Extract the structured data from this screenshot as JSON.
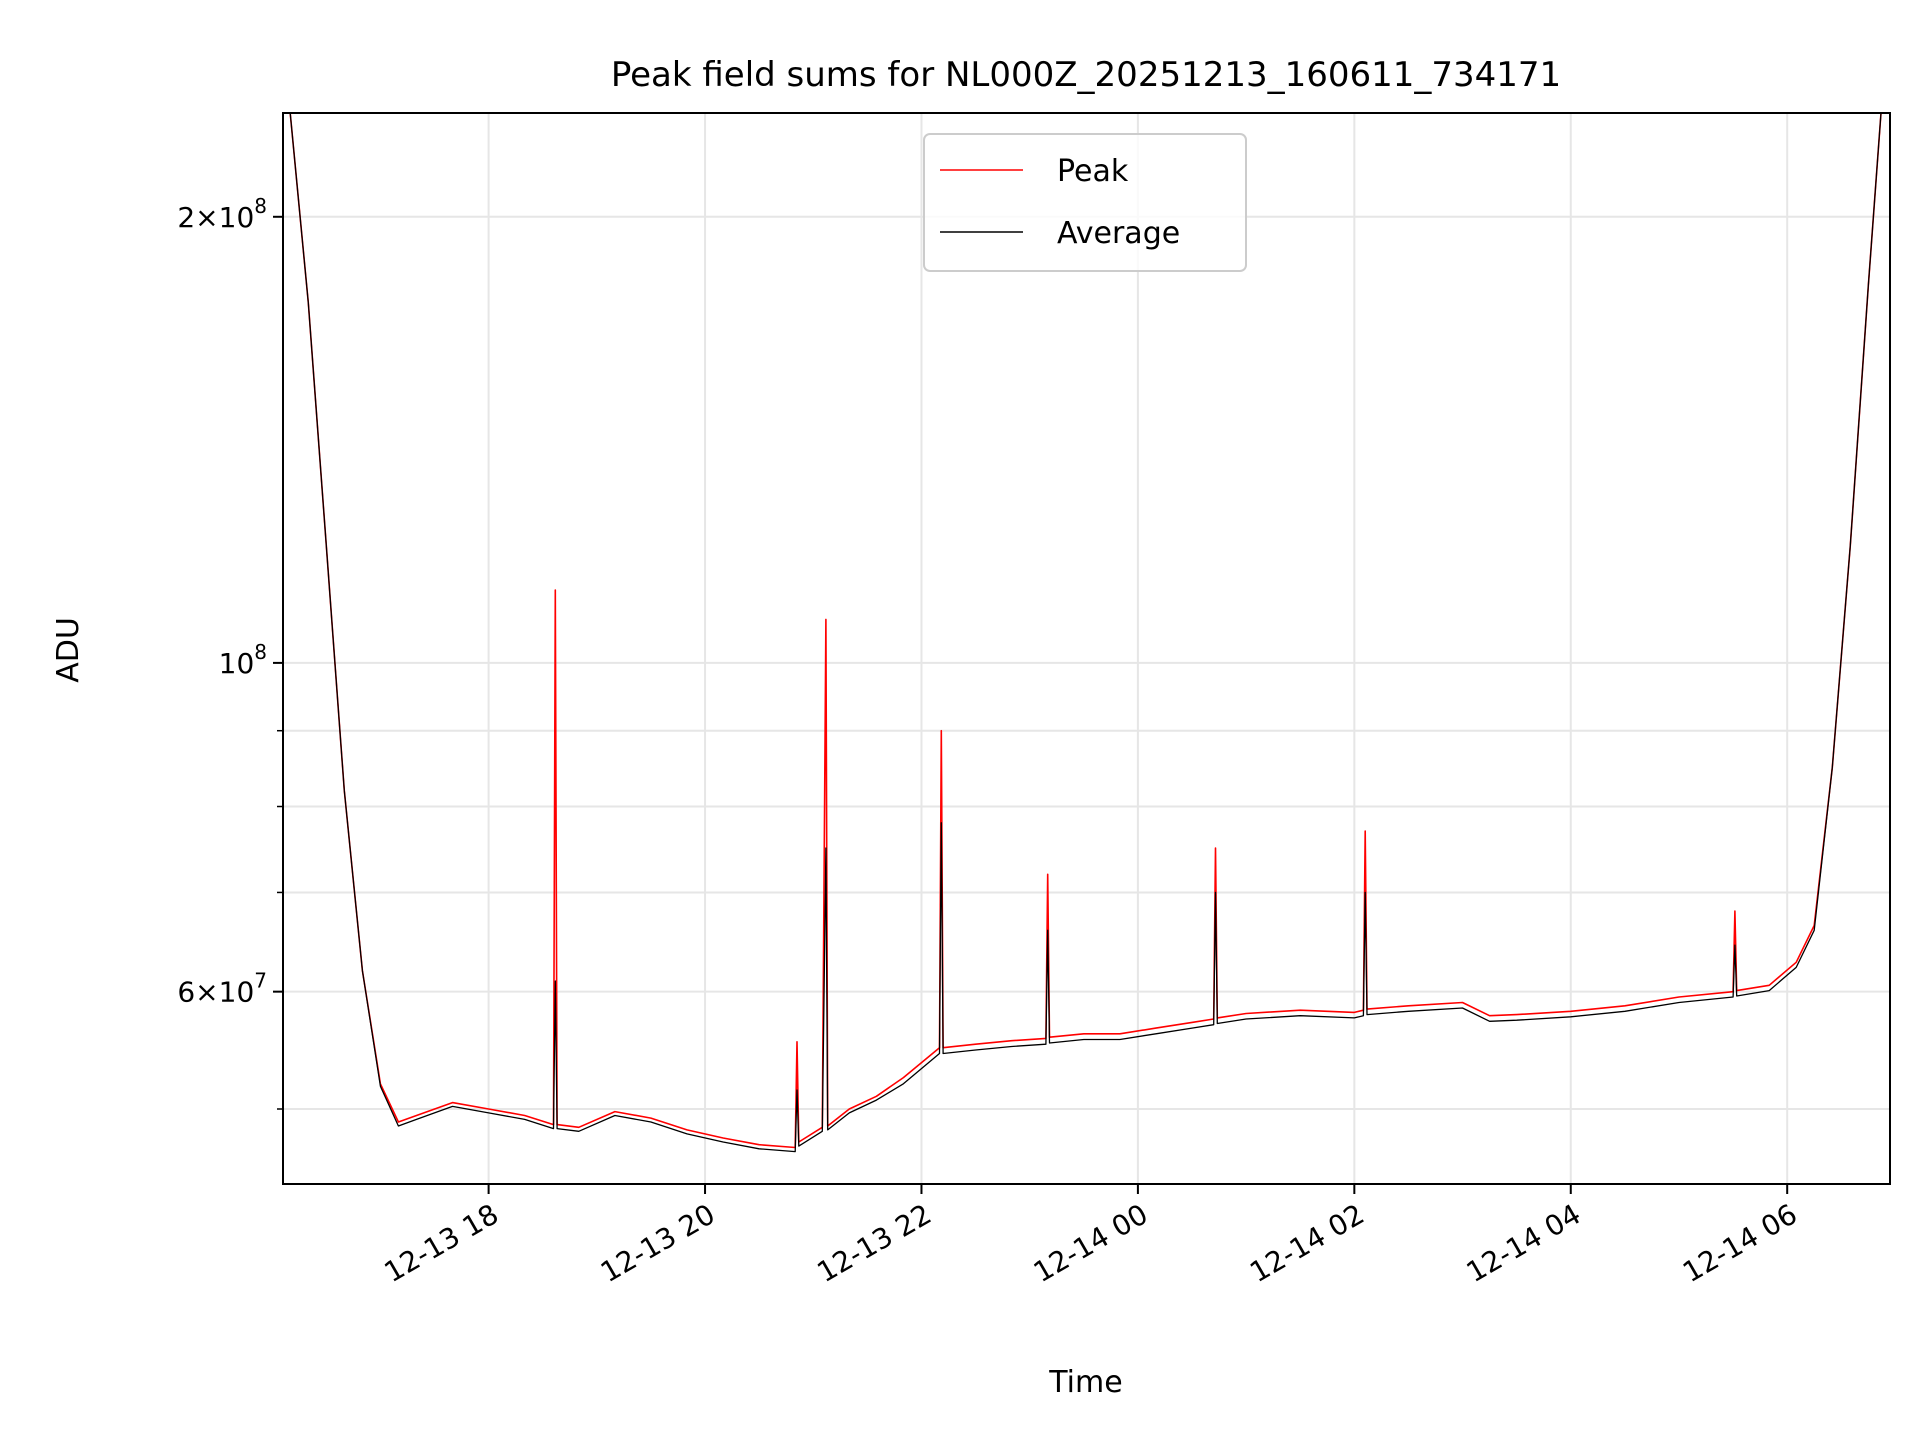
{
  "chart_data": {
    "type": "line",
    "title": "Peak field sums for NL000Z_20251213_160611_734171",
    "xlabel": "Time",
    "ylabel": "ADU",
    "y_scale": "log",
    "grid": true,
    "legend_position": "top-center",
    "xlim": [
      "2025-12-13 16:06",
      "2025-12-14 06:57"
    ],
    "ylim": [
      44500000,
      235000000
    ],
    "x_ticks": [
      "12-13 18",
      "12-13 20",
      "12-13 22",
      "12-14 00",
      "12-14 02",
      "12-14 04",
      "12-14 06"
    ],
    "x_tick_values": [
      "2025-12-13 18:00",
      "2025-12-13 20:00",
      "2025-12-13 22:00",
      "2025-12-14 00:00",
      "2025-12-14 02:00",
      "2025-12-14 04:00",
      "2025-12-14 06:00"
    ],
    "y_major_ticks": [
      {
        "value": 200000000,
        "mantissa": "2",
        "exponent": "8"
      },
      {
        "value": 100000000,
        "mantissa": "",
        "exponent": "8"
      },
      {
        "value": 60000000,
        "mantissa": "6",
        "exponent": "7"
      }
    ],
    "y_minor_ticks": [
      50000000,
      70000000,
      80000000,
      90000000
    ],
    "series": [
      {
        "name": "Peak",
        "color": "#ff0000",
        "x": [
          "2025-12-13 16:10",
          "2025-12-13 16:20",
          "2025-12-13 16:30",
          "2025-12-13 16:40",
          "2025-12-13 16:50",
          "2025-12-13 17:00",
          "2025-12-13 17:10",
          "2025-12-13 17:20",
          "2025-12-13 17:40",
          "2025-12-13 18:00",
          "2025-12-13 18:20",
          "2025-12-13 18:36",
          "2025-12-13 18:37",
          "2025-12-13 18:38",
          "2025-12-13 18:50",
          "2025-12-13 19:10",
          "2025-12-13 19:30",
          "2025-12-13 19:50",
          "2025-12-13 20:10",
          "2025-12-13 20:30",
          "2025-12-13 20:50",
          "2025-12-13 20:51",
          "2025-12-13 20:52",
          "2025-12-13 21:05",
          "2025-12-13 21:07",
          "2025-12-13 21:08",
          "2025-12-13 21:20",
          "2025-12-13 21:35",
          "2025-12-13 21:50",
          "2025-12-13 22:10",
          "2025-12-13 22:11",
          "2025-12-13 22:12",
          "2025-12-13 22:30",
          "2025-12-13 22:50",
          "2025-12-13 23:09",
          "2025-12-13 23:10",
          "2025-12-13 23:11",
          "2025-12-13 23:30",
          "2025-12-13 23:50",
          "2025-12-14 00:10",
          "2025-12-14 00:30",
          "2025-12-14 00:42",
          "2025-12-14 00:43",
          "2025-12-14 00:44",
          "2025-12-14 01:00",
          "2025-12-14 01:30",
          "2025-12-14 02:00",
          "2025-12-14 02:05",
          "2025-12-14 02:06",
          "2025-12-14 02:07",
          "2025-12-14 02:30",
          "2025-12-14 03:00",
          "2025-12-14 03:15",
          "2025-12-14 03:30",
          "2025-12-14 04:00",
          "2025-12-14 04:30",
          "2025-12-14 05:00",
          "2025-12-14 05:30",
          "2025-12-14 05:31",
          "2025-12-14 05:32",
          "2025-12-14 05:50",
          "2025-12-14 06:05",
          "2025-12-14 06:15",
          "2025-12-14 06:25",
          "2025-12-14 06:35",
          "2025-12-14 06:45",
          "2025-12-14 06:52"
        ],
        "y": [
          235000000,
          175000000,
          120000000,
          82000000,
          62000000,
          52000000,
          49000000,
          49500000,
          50500000,
          50000000,
          49500000,
          48800000,
          112000000,
          48800000,
          48600000,
          49800000,
          49300000,
          48400000,
          47800000,
          47300000,
          47100000,
          55500000,
          47500000,
          48600000,
          107000000,
          48700000,
          50000000,
          51000000,
          52500000,
          55000000,
          90000000,
          55000000,
          55300000,
          55600000,
          55800000,
          72000000,
          55900000,
          56200000,
          56200000,
          56700000,
          57200000,
          57500000,
          75000000,
          57600000,
          58000000,
          58300000,
          58100000,
          58300000,
          77000000,
          58400000,
          58700000,
          59000000,
          57800000,
          57900000,
          58200000,
          58700000,
          59500000,
          60000000,
          68000000,
          60100000,
          60600000,
          62800000,
          66500000,
          85000000,
          120000000,
          180000000,
          235000000
        ]
      },
      {
        "name": "Average",
        "color": "#000000",
        "x": [
          "2025-12-13 16:10",
          "2025-12-13 16:20",
          "2025-12-13 16:30",
          "2025-12-13 16:40",
          "2025-12-13 16:50",
          "2025-12-13 17:00",
          "2025-12-13 17:10",
          "2025-12-13 17:20",
          "2025-12-13 17:40",
          "2025-12-13 18:00",
          "2025-12-13 18:20",
          "2025-12-13 18:36",
          "2025-12-13 18:37",
          "2025-12-13 18:38",
          "2025-12-13 18:50",
          "2025-12-13 19:10",
          "2025-12-13 19:30",
          "2025-12-13 19:50",
          "2025-12-13 20:10",
          "2025-12-13 20:30",
          "2025-12-13 20:50",
          "2025-12-13 20:51",
          "2025-12-13 20:52",
          "2025-12-13 21:05",
          "2025-12-13 21:07",
          "2025-12-13 21:08",
          "2025-12-13 21:20",
          "2025-12-13 21:35",
          "2025-12-13 21:50",
          "2025-12-13 22:10",
          "2025-12-13 22:11",
          "2025-12-13 22:12",
          "2025-12-13 22:30",
          "2025-12-13 22:50",
          "2025-12-13 23:09",
          "2025-12-13 23:10",
          "2025-12-13 23:11",
          "2025-12-13 23:30",
          "2025-12-13 23:50",
          "2025-12-14 00:10",
          "2025-12-14 00:30",
          "2025-12-14 00:42",
          "2025-12-14 00:43",
          "2025-12-14 00:44",
          "2025-12-14 01:00",
          "2025-12-14 01:30",
          "2025-12-14 02:00",
          "2025-12-14 02:05",
          "2025-12-14 02:06",
          "2025-12-14 02:07",
          "2025-12-14 02:30",
          "2025-12-14 03:00",
          "2025-12-14 03:15",
          "2025-12-14 03:30",
          "2025-12-14 04:00",
          "2025-12-14 04:30",
          "2025-12-14 05:00",
          "2025-12-14 05:30",
          "2025-12-14 05:31",
          "2025-12-14 05:32",
          "2025-12-14 05:50",
          "2025-12-14 06:05",
          "2025-12-14 06:15",
          "2025-12-14 06:25",
          "2025-12-14 06:35",
          "2025-12-14 06:45",
          "2025-12-14 06:52"
        ],
        "y": [
          235000000,
          175000000,
          120000000,
          82000000,
          62000000,
          51800000,
          48700000,
          49200000,
          50200000,
          49700000,
          49200000,
          48500000,
          61000000,
          48500000,
          48300000,
          49500000,
          49000000,
          48100000,
          47500000,
          47000000,
          46800000,
          51500000,
          47200000,
          48300000,
          75000000,
          48400000,
          49700000,
          50700000,
          52000000,
          54500000,
          78000000,
          54500000,
          54800000,
          55100000,
          55300000,
          66000000,
          55400000,
          55700000,
          55700000,
          56200000,
          56700000,
          57000000,
          70000000,
          57100000,
          57500000,
          57800000,
          57600000,
          57800000,
          70000000,
          57900000,
          58200000,
          58500000,
          57300000,
          57400000,
          57700000,
          58200000,
          59000000,
          59500000,
          64500000,
          59600000,
          60100000,
          62300000,
          66000000,
          85000000,
          120000000,
          180000000,
          235000000
        ]
      }
    ]
  }
}
